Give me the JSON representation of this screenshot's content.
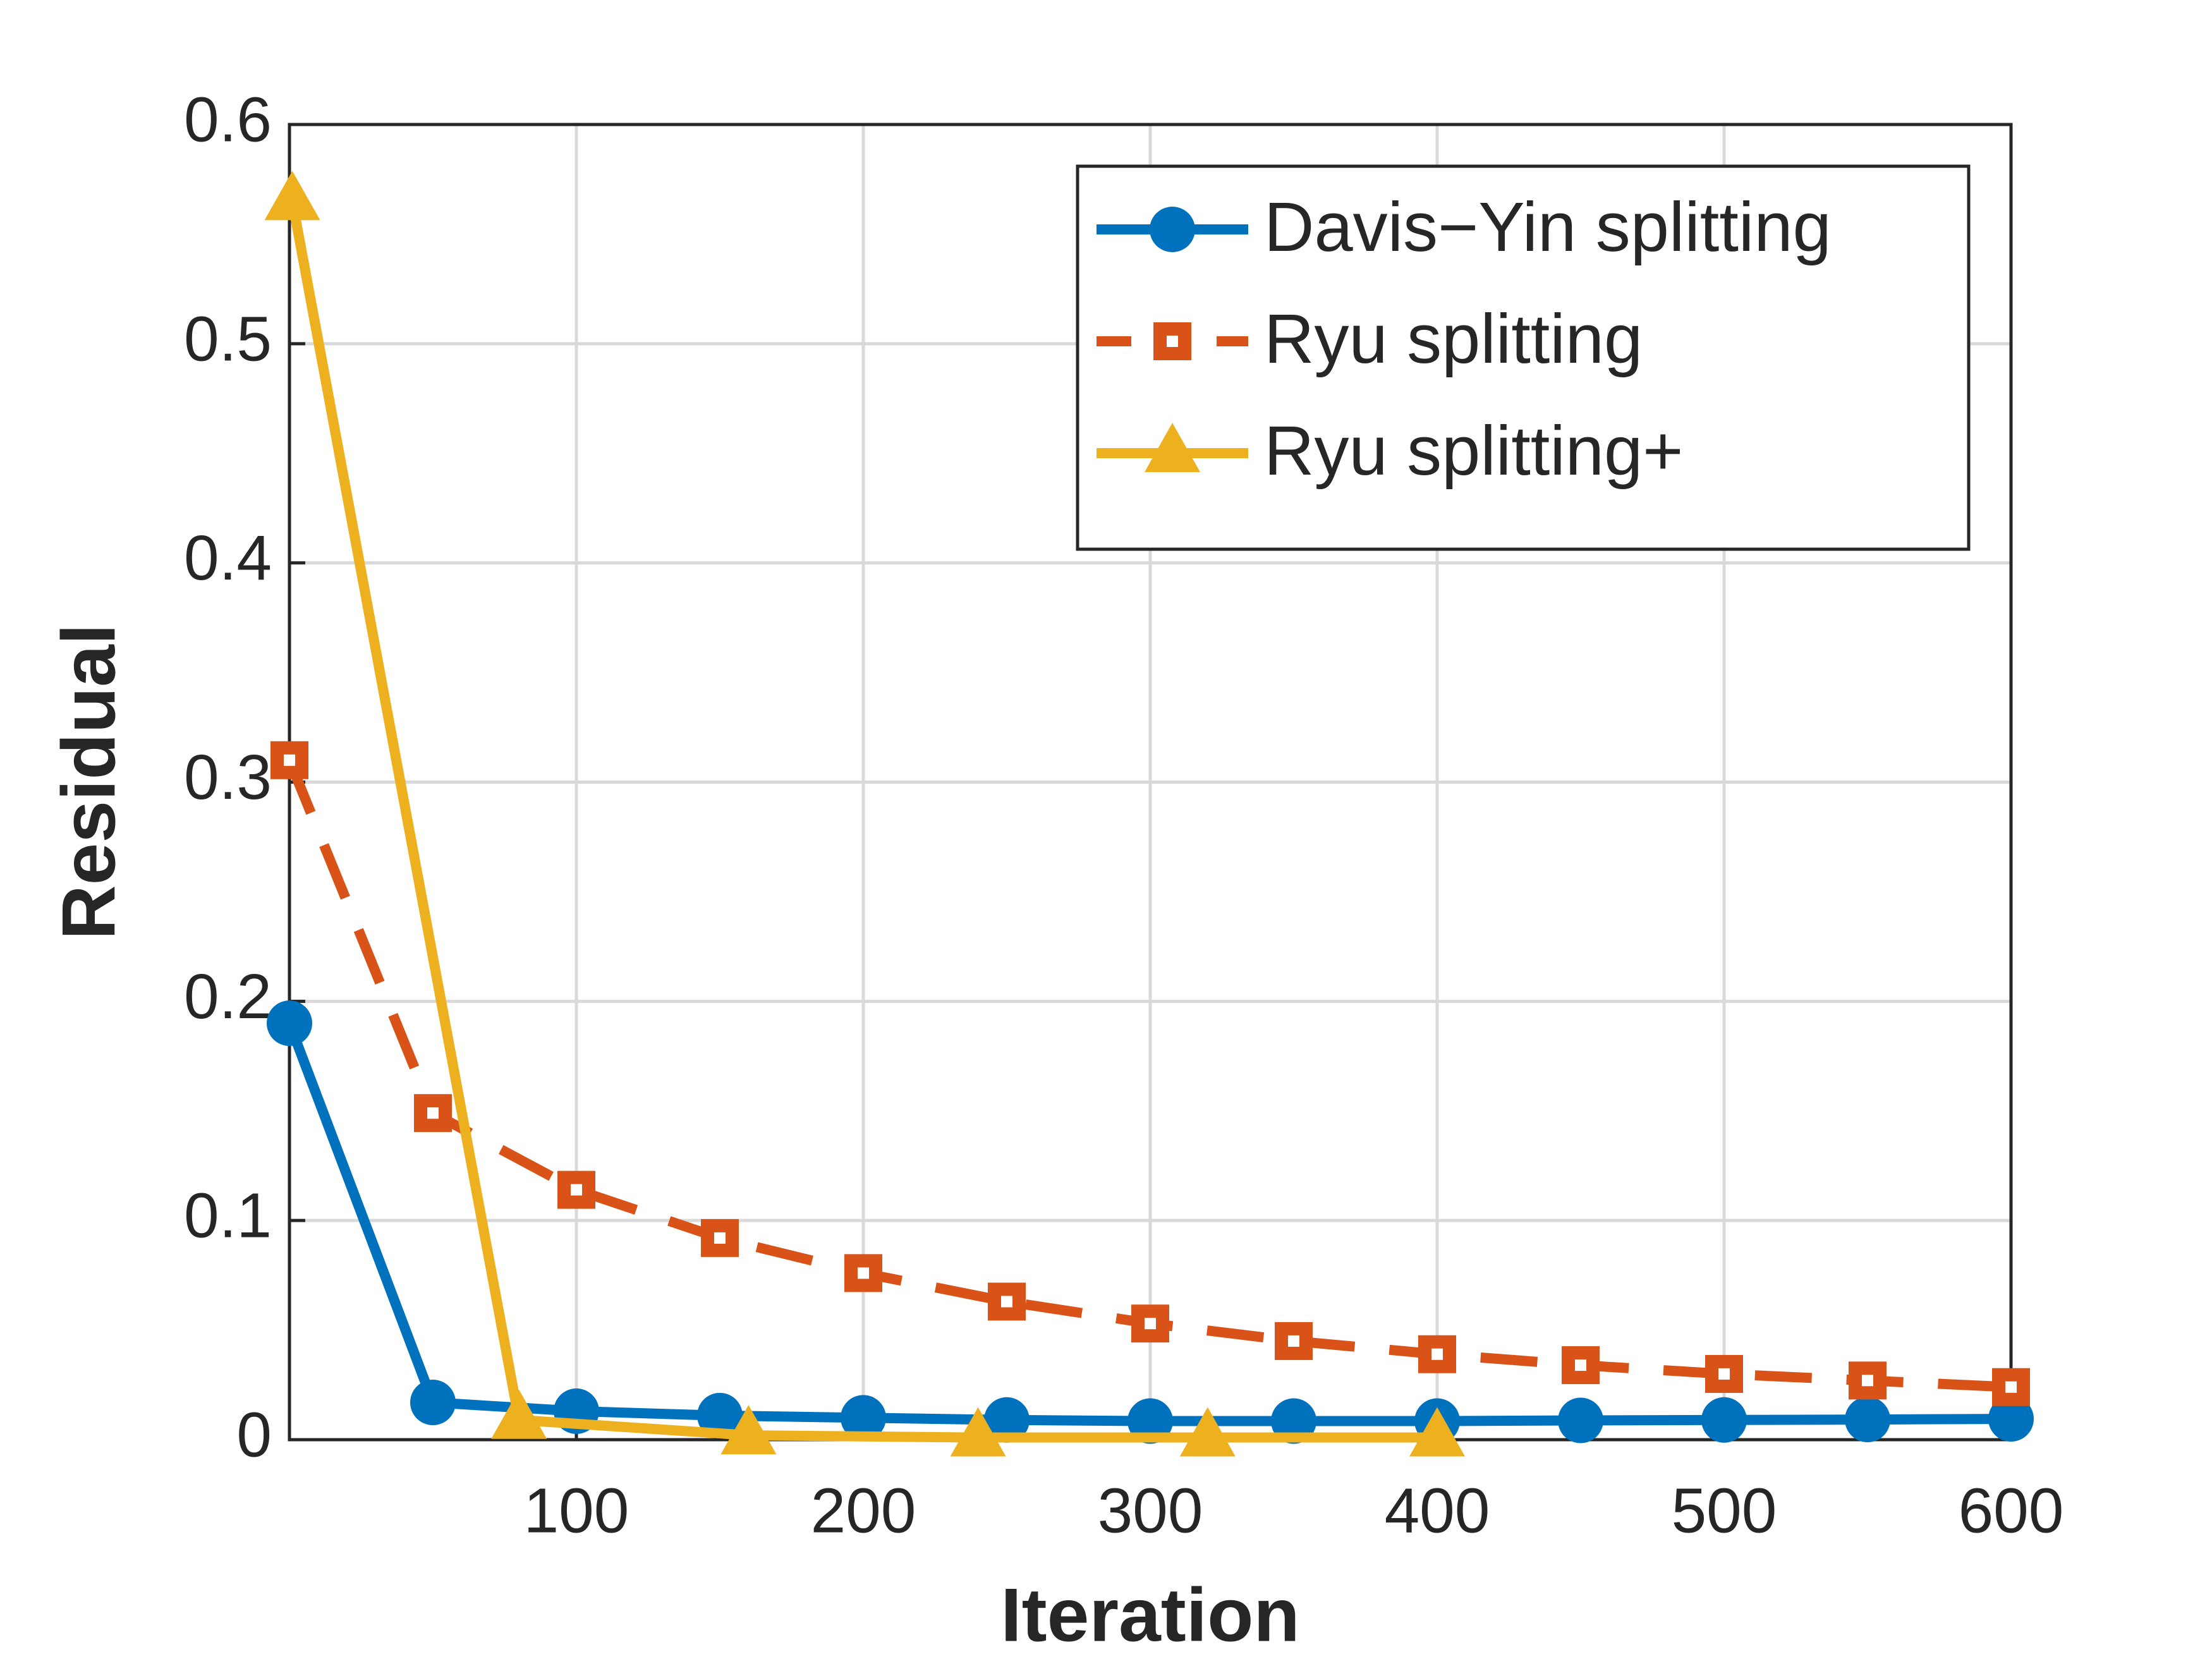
{
  "chart_data": {
    "type": "line",
    "x_label": "Iteration",
    "y_label": "Residual",
    "xlim": [
      0,
      600
    ],
    "ylim": [
      0,
      0.6
    ],
    "xticks": [
      100,
      200,
      300,
      400,
      500,
      600
    ],
    "yticks": [
      0,
      0.1,
      0.2,
      0.3,
      0.4,
      0.5,
      0.6
    ],
    "grid": true,
    "legend": "upper right",
    "series": [
      {
        "name": "Davis−Yin splitting",
        "color": "#0072bd",
        "dash": "solid",
        "marker": "circle",
        "x": [
          0,
          50,
          100,
          150,
          200,
          250,
          300,
          350,
          400,
          450,
          500,
          550,
          600
        ],
        "values": [
          0.19,
          0.017,
          0.013,
          0.011,
          0.01,
          0.009,
          0.0085,
          0.0085,
          0.0085,
          0.0088,
          0.009,
          0.0092,
          0.0095
        ]
      },
      {
        "name": "Ryu splitting",
        "color": "#d95319",
        "dash": "dashed",
        "marker": "square",
        "x": [
          0,
          50,
          100,
          150,
          200,
          250,
          300,
          350,
          400,
          450,
          500,
          550,
          600
        ],
        "values": [
          0.31,
          0.149,
          0.114,
          0.092,
          0.076,
          0.063,
          0.053,
          0.045,
          0.039,
          0.034,
          0.03,
          0.027,
          0.024
        ]
      },
      {
        "name": "Ryu splitting+",
        "color": "#edb120",
        "dash": "solid",
        "marker": "triangle",
        "x": [
          1,
          80,
          160,
          240,
          320,
          400
        ],
        "values": [
          0.565,
          0.009,
          0.002,
          0.001,
          0.001,
          0.001
        ]
      }
    ]
  }
}
